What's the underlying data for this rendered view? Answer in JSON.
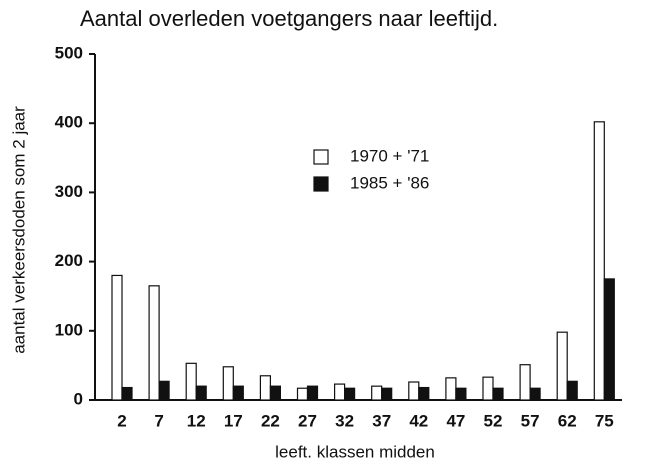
{
  "chart_data": {
    "type": "bar",
    "title": "Aantal overleden voetgangers naar leeftijd.",
    "x_label": "leeft. klassen midden",
    "y_label": "aantal verkeersdoden som 2 jaar",
    "categories": [
      "2",
      "7",
      "12",
      "17",
      "22",
      "27",
      "32",
      "37",
      "42",
      "47",
      "52",
      "57",
      "62",
      "75"
    ],
    "series": [
      {
        "name": "1970 + '71",
        "color": "#ffffff",
        "values": [
          180,
          165,
          53,
          48,
          35,
          17,
          23,
          20,
          26,
          32,
          33,
          51,
          98,
          402
        ]
      },
      {
        "name": "1985 + '86",
        "color": "#111111",
        "values": [
          18,
          27,
          20,
          20,
          20,
          20,
          17,
          17,
          18,
          17,
          17,
          17,
          27,
          175
        ]
      }
    ],
    "ylim": [
      0,
      500
    ],
    "yticks": [
      0,
      100,
      200,
      300,
      400,
      500
    ],
    "grid": false
  }
}
